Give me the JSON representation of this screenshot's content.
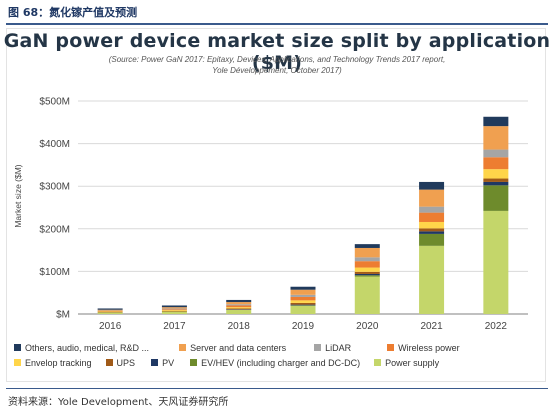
{
  "figure_caption": "图 68：氮化镓产值及预测",
  "source_note": "资料来源：Yole Development、天风证券研究所",
  "chart_data": {
    "type": "bar",
    "stacked": true,
    "title": "GaN power device market size split by application ($M)",
    "subtitle_lines": [
      "(Source: Power GaN 2017: Epitaxy, Devices, Applications, and Technology Trends 2017 report,",
      "Yole Développement, October 2017)"
    ],
    "xlabel": "",
    "ylabel": "Market size ($M)",
    "ylim": [
      0,
      500
    ],
    "yticks": [
      0,
      100,
      200,
      300,
      400,
      500
    ],
    "ytick_labels": [
      "$M",
      "$100M",
      "$200M",
      "$300M",
      "$400M",
      "$500M"
    ],
    "grid": "horizontal",
    "legend_position": "bottom",
    "categories": [
      "2016",
      "2017",
      "2018",
      "2019",
      "2020",
      "2021",
      "2022"
    ],
    "series": [
      {
        "name": "Power supply",
        "color": "#c4d66a",
        "values": [
          4,
          6,
          10,
          20,
          88,
          160,
          242
        ]
      },
      {
        "name": "EV/HEV (including charger and DC-DC)",
        "color": "#6e8b2c",
        "values": [
          0,
          0,
          0,
          0,
          3,
          28,
          60
        ]
      },
      {
        "name": "PV",
        "color": "#1f3864",
        "values": [
          0,
          0,
          1,
          2,
          3,
          6,
          8
        ]
      },
      {
        "name": "UPS",
        "color": "#a05a18",
        "values": [
          1,
          1,
          2,
          4,
          5,
          7,
          8
        ]
      },
      {
        "name": "Envelop tracking",
        "color": "#ffd54a",
        "values": [
          1,
          2,
          3,
          6,
          10,
          15,
          22
        ]
      },
      {
        "name": "Wireless power",
        "color": "#ed7d31",
        "values": [
          1,
          2,
          4,
          8,
          15,
          22,
          28
        ]
      },
      {
        "name": "LiDAR",
        "color": "#a5a5a5",
        "values": [
          1,
          2,
          3,
          5,
          9,
          14,
          18
        ]
      },
      {
        "name": "Server and data centers",
        "color": "#f0a050",
        "values": [
          2,
          3,
          5,
          12,
          22,
          40,
          55
        ]
      },
      {
        "name": "Others, audio, medical, R&D ...",
        "color": "#203a5c",
        "values": [
          3,
          4,
          5,
          7,
          9,
          18,
          22
        ]
      }
    ],
    "legend_rows": [
      [
        "Others, audio, medical, R&D ...",
        "Server and data centers",
        "LiDAR",
        "Wireless power"
      ],
      [
        "Envelop tracking",
        "UPS",
        "PV",
        "EV/HEV (including charger and DC-DC)",
        "Power supply"
      ]
    ]
  }
}
